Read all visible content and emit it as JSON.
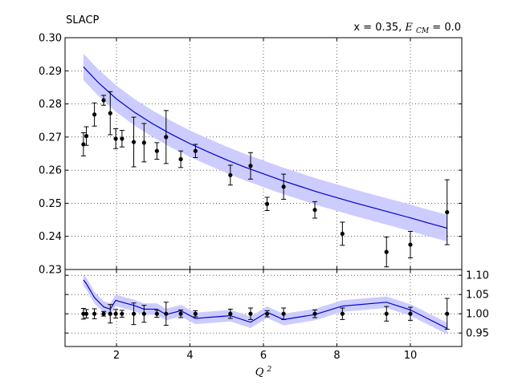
{
  "chart_data": [
    {
      "type": "scatter",
      "panel": "main",
      "title_left": "SLACP",
      "title_right_prefix": "x = 0.35, ",
      "title_right_var": "E",
      "title_right_sub": "CM",
      "title_right_suffix": " = 0.0",
      "xlim": [
        0.6,
        11.4
      ],
      "ylim": [
        0.23,
        0.3
      ],
      "yticks": [
        "0.23",
        "0.24",
        "0.25",
        "0.26",
        "0.27",
        "0.28",
        "0.29",
        "0.30"
      ],
      "grid": true,
      "colors": {
        "band": "#ccccff",
        "line": "#0000cc",
        "points": "#000000"
      },
      "points": [
        {
          "x": 1.1,
          "y": 0.2678,
          "err": 0.0035
        },
        {
          "x": 1.18,
          "y": 0.2703,
          "err": 0.0028
        },
        {
          "x": 1.4,
          "y": 0.2768,
          "err": 0.0035
        },
        {
          "x": 1.65,
          "y": 0.2811,
          "err": 0.0015
        },
        {
          "x": 1.83,
          "y": 0.2772,
          "err": 0.0065
        },
        {
          "x": 1.98,
          "y": 0.2695,
          "err": 0.003
        },
        {
          "x": 2.15,
          "y": 0.2695,
          "err": 0.0025
        },
        {
          "x": 2.47,
          "y": 0.2685,
          "err": 0.0075
        },
        {
          "x": 2.75,
          "y": 0.2683,
          "err": 0.0058
        },
        {
          "x": 3.1,
          "y": 0.2658,
          "err": 0.0025
        },
        {
          "x": 3.35,
          "y": 0.27,
          "err": 0.008
        },
        {
          "x": 3.75,
          "y": 0.2633,
          "err": 0.0025
        },
        {
          "x": 4.15,
          "y": 0.2658,
          "err": 0.002
        },
        {
          "x": 5.1,
          "y": 0.2585,
          "err": 0.003
        },
        {
          "x": 5.65,
          "y": 0.2613,
          "err": 0.004
        },
        {
          "x": 6.1,
          "y": 0.2498,
          "err": 0.002
        },
        {
          "x": 6.55,
          "y": 0.255,
          "err": 0.0038
        },
        {
          "x": 7.4,
          "y": 0.248,
          "err": 0.0025
        },
        {
          "x": 8.15,
          "y": 0.2408,
          "err": 0.0035
        },
        {
          "x": 9.35,
          "y": 0.2353,
          "err": 0.0045
        },
        {
          "x": 10.0,
          "y": 0.2375,
          "err": 0.004
        },
        {
          "x": 11.0,
          "y": 0.2473,
          "err": 0.0098
        }
      ],
      "curve": {
        "x": [
          1.1,
          1.5,
          2.0,
          2.5,
          3.0,
          3.5,
          4.0,
          4.5,
          5.0,
          5.5,
          6.0,
          6.5,
          7.0,
          7.5,
          8.0,
          8.5,
          9.0,
          9.5,
          10.0,
          10.5,
          11.0
        ],
        "y": [
          0.2912,
          0.2865,
          0.2815,
          0.2774,
          0.2739,
          0.2708,
          0.268,
          0.2655,
          0.2631,
          0.2609,
          0.2589,
          0.2569,
          0.2551,
          0.2533,
          0.2517,
          0.2501,
          0.2486,
          0.2471,
          0.2456,
          0.244,
          0.2425
        ],
        "band_halfwidth": 0.004
      }
    },
    {
      "type": "line",
      "panel": "ratio",
      "xlabel_var": "Q",
      "xlabel_sup": "2",
      "xlim": [
        0.6,
        11.4
      ],
      "ylim": [
        0.915,
        1.115
      ],
      "yticks": [
        "0.95",
        "1.00",
        "1.05",
        "1.10"
      ],
      "xticks": [
        "2",
        "4",
        "6",
        "8",
        "10"
      ],
      "grid": true,
      "colors": {
        "band": "#ccccff",
        "line": "#0000cc",
        "points": "#000000"
      },
      "points": [
        {
          "x": 1.1,
          "y": 1.0,
          "err": 0.014
        },
        {
          "x": 1.18,
          "y": 1.0,
          "err": 0.011
        },
        {
          "x": 1.4,
          "y": 1.0,
          "err": 0.013
        },
        {
          "x": 1.65,
          "y": 1.0,
          "err": 0.006
        },
        {
          "x": 1.83,
          "y": 1.0,
          "err": 0.024
        },
        {
          "x": 1.98,
          "y": 1.0,
          "err": 0.011
        },
        {
          "x": 2.15,
          "y": 1.0,
          "err": 0.009
        },
        {
          "x": 2.47,
          "y": 1.0,
          "err": 0.028
        },
        {
          "x": 2.75,
          "y": 1.0,
          "err": 0.022
        },
        {
          "x": 3.1,
          "y": 1.0,
          "err": 0.009
        },
        {
          "x": 3.35,
          "y": 1.0,
          "err": 0.03
        },
        {
          "x": 3.75,
          "y": 1.0,
          "err": 0.01
        },
        {
          "x": 4.15,
          "y": 1.0,
          "err": 0.008
        },
        {
          "x": 5.1,
          "y": 1.0,
          "err": 0.012
        },
        {
          "x": 5.65,
          "y": 1.0,
          "err": 0.015
        },
        {
          "x": 6.1,
          "y": 1.0,
          "err": 0.008
        },
        {
          "x": 6.55,
          "y": 1.0,
          "err": 0.015
        },
        {
          "x": 7.4,
          "y": 1.0,
          "err": 0.01
        },
        {
          "x": 8.15,
          "y": 1.0,
          "err": 0.015
        },
        {
          "x": 9.35,
          "y": 1.0,
          "err": 0.019
        },
        {
          "x": 10.0,
          "y": 1.0,
          "err": 0.017
        },
        {
          "x": 11.0,
          "y": 1.0,
          "err": 0.04
        }
      ],
      "curve": {
        "x": [
          1.1,
          1.18,
          1.4,
          1.65,
          1.83,
          1.98,
          2.15,
          2.47,
          2.75,
          3.1,
          3.35,
          3.75,
          4.15,
          5.1,
          5.65,
          6.1,
          6.55,
          7.4,
          8.15,
          9.35,
          10.0,
          11.0
        ],
        "y": [
          1.088,
          1.078,
          1.042,
          1.018,
          1.012,
          1.035,
          1.03,
          1.022,
          1.012,
          1.012,
          0.998,
          1.008,
          0.988,
          0.995,
          0.978,
          1.004,
          0.985,
          0.998,
          1.02,
          1.03,
          1.01,
          0.962
        ],
        "band_halfwidth": 0.015
      }
    }
  ]
}
